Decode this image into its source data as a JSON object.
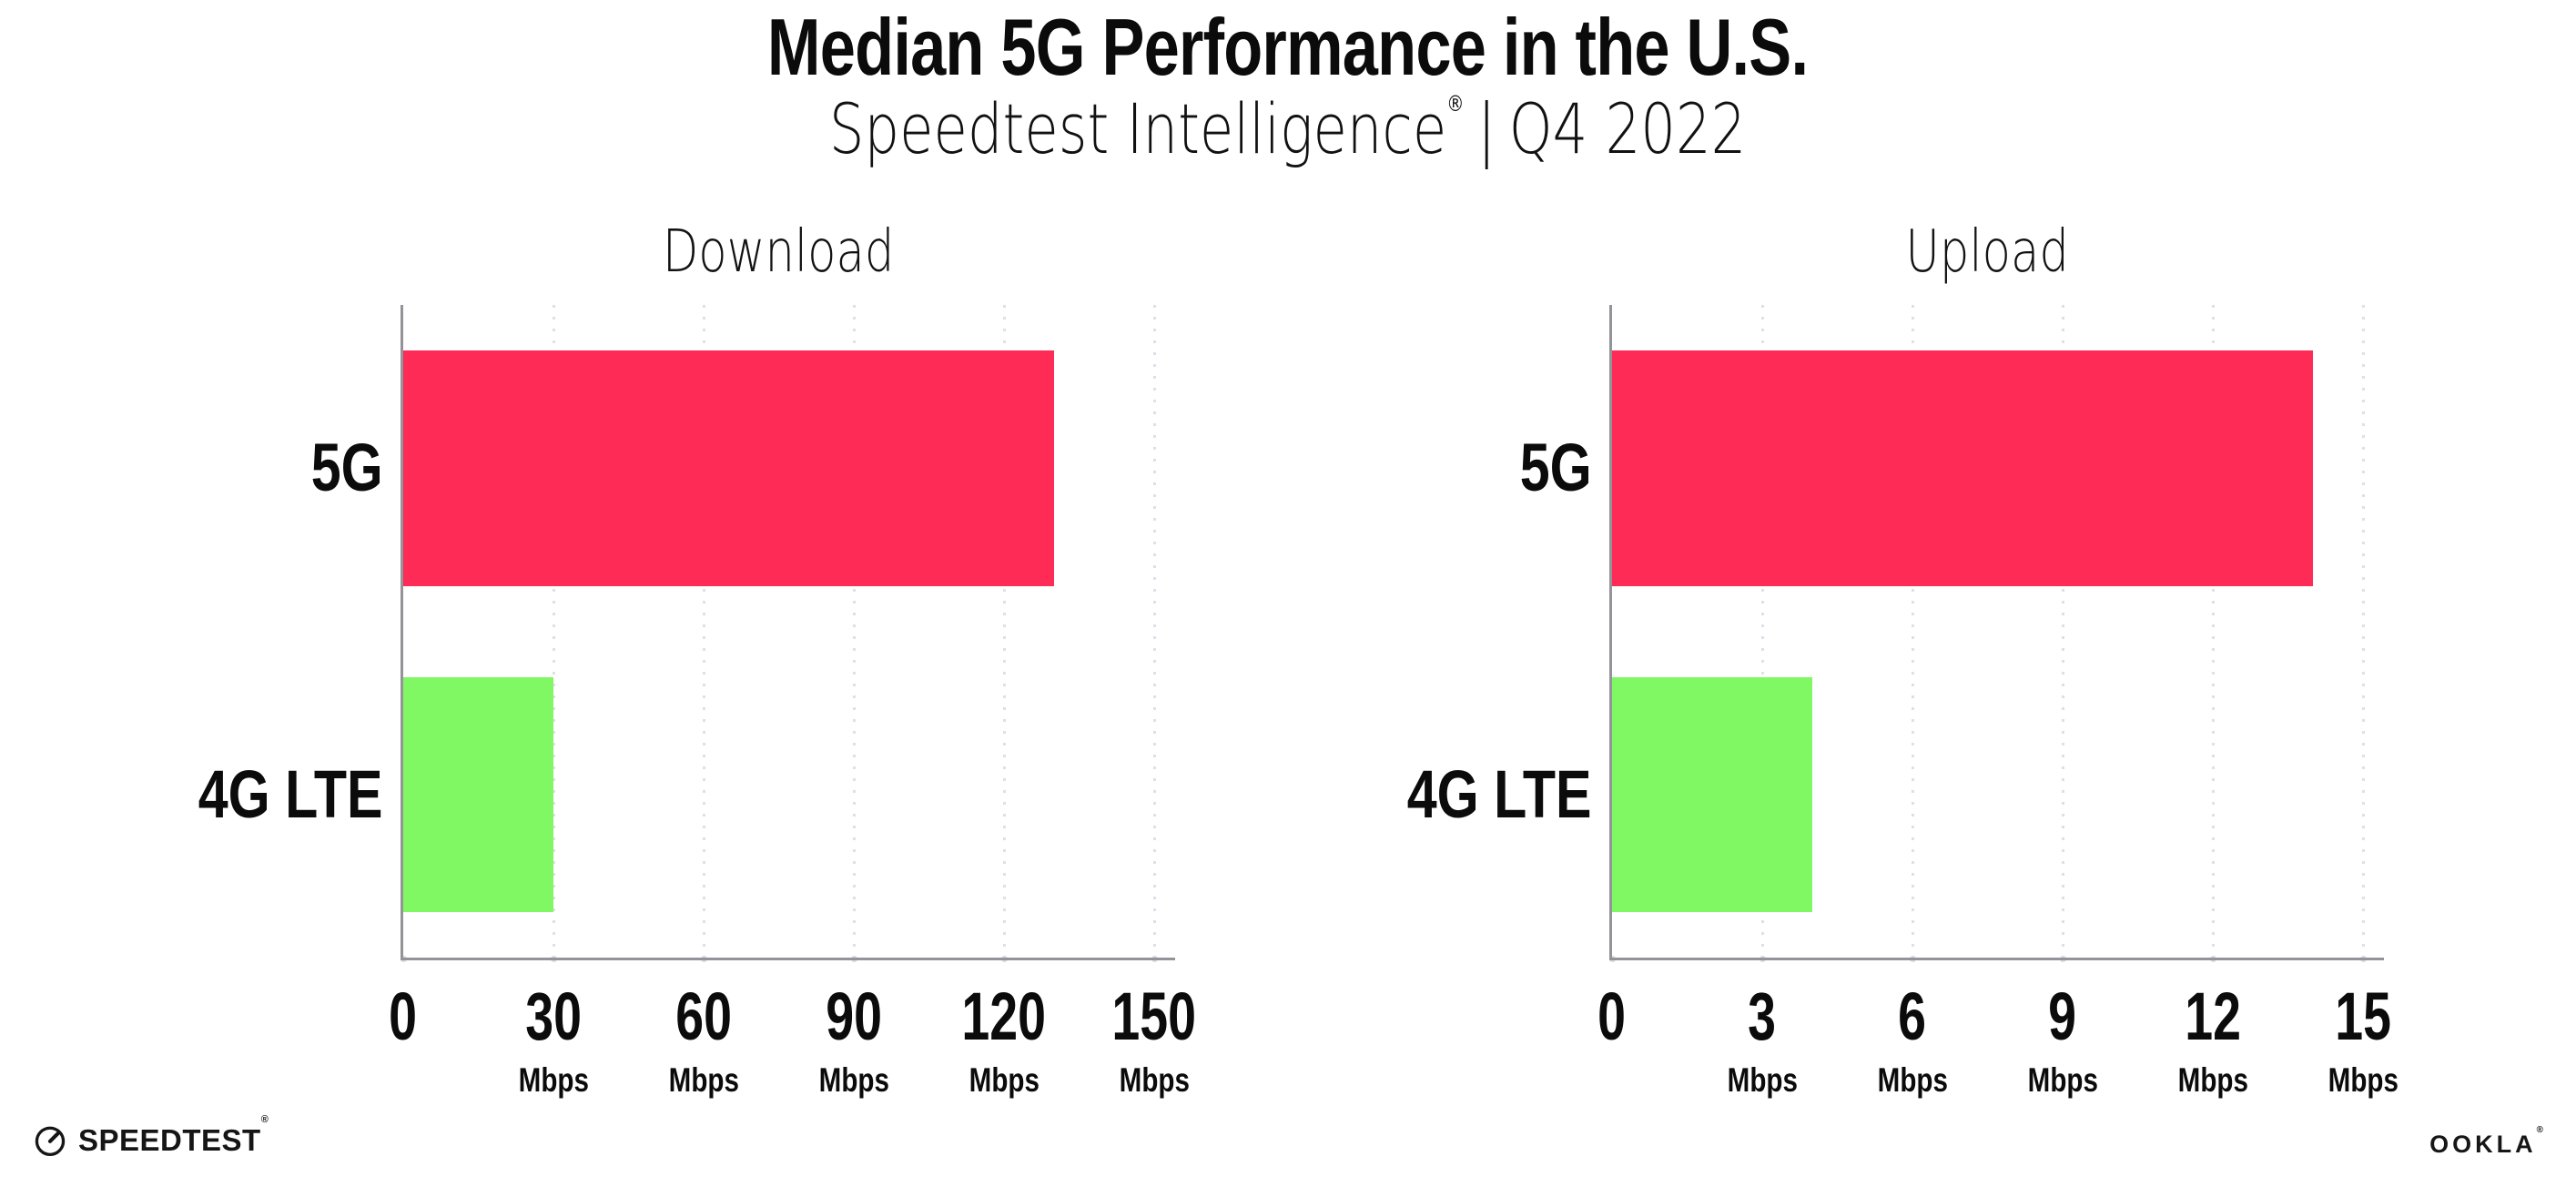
{
  "header": {
    "title": "Median 5G Performance in the U.S.",
    "subtitle_brand": "Speedtest Intelligence",
    "subtitle_reg": "®",
    "subtitle_sep": "|",
    "subtitle_period": "Q4 2022"
  },
  "footer": {
    "speedtest_label": "SPEEDTEST",
    "speedtest_mark": "®",
    "ookla_label": "OOKLA",
    "ookla_mark": "®"
  },
  "colors": {
    "bar_5g": "#fd2b55",
    "bar_4g_lte": "#80f863",
    "grid": "#dfdfe8",
    "axis": "#939398",
    "text": "#0b0b0c"
  },
  "chart_data": [
    {
      "type": "bar",
      "orientation": "horizontal",
      "title": "Download",
      "categories": [
        "5G",
        "4G LTE"
      ],
      "values": [
        130,
        30
      ],
      "bar_colors": [
        "#fd2b55",
        "#80f863"
      ],
      "xlim": [
        0,
        150
      ],
      "xticks": [
        0,
        30,
        60,
        90,
        120,
        150
      ],
      "tick_unit": "Mbps",
      "grid": "dotted-vertical",
      "legend": "none"
    },
    {
      "type": "bar",
      "orientation": "horizontal",
      "title": "Upload",
      "categories": [
        "5G",
        "4G LTE"
      ],
      "values": [
        14,
        4
      ],
      "bar_colors": [
        "#fd2b55",
        "#80f863"
      ],
      "xlim": [
        0,
        15
      ],
      "xticks": [
        0,
        3,
        6,
        9,
        12,
        15
      ],
      "tick_unit": "Mbps",
      "grid": "dotted-vertical",
      "legend": "none"
    }
  ]
}
